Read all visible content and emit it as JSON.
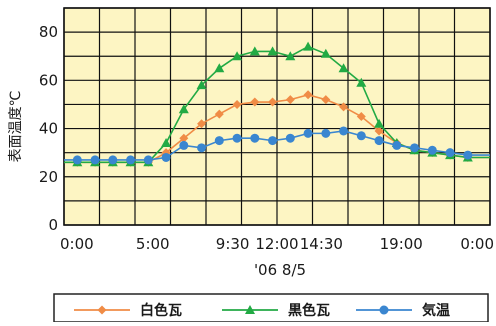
{
  "chart_data": {
    "type": "line",
    "title": "",
    "ylabel": "表面温度℃",
    "xlabel": "'06 8/5",
    "ylim": [
      0,
      90
    ],
    "yticks": [
      0,
      20,
      40,
      60,
      80
    ],
    "xticks": [
      "0:00",
      "5:00",
      "9:30",
      "12:00",
      "14:30",
      "19:00",
      "0:00"
    ],
    "x": [
      "1:00",
      "2:00",
      "3:00",
      "4:00",
      "5:00",
      "6:30",
      "7:00",
      "8:00",
      "9:00",
      "10:00",
      "11:00",
      "12:00",
      "13:00",
      "14:00",
      "15:00",
      "16:00",
      "17:00",
      "18:00",
      "19:00",
      "20:00",
      "21:00",
      "22:00",
      "23:00",
      "0:00"
    ],
    "grid": true,
    "legend_position": "bottom",
    "colors": {
      "plot_bg": "#fdf5c3",
      "grid": "#111111"
    },
    "series": [
      {
        "name": "白色瓦",
        "color": "#f08c46",
        "marker": "diamond",
        "values": [
          26,
          26,
          26,
          26,
          26,
          30,
          36,
          42,
          46,
          50,
          51,
          51,
          52,
          54,
          52,
          49,
          45,
          39,
          34,
          31,
          30,
          29,
          28,
          28
        ]
      },
      {
        "name": "黒色瓦",
        "color": "#22aa44",
        "marker": "triangle",
        "values": [
          26,
          26,
          26,
          26,
          26,
          34,
          48,
          58,
          65,
          70,
          72,
          72,
          70,
          74,
          71,
          65,
          59,
          42,
          34,
          31,
          30,
          29,
          28,
          28
        ]
      },
      {
        "name": "気温",
        "color": "#3a86d0",
        "marker": "circle",
        "values": [
          27,
          27,
          27,
          27,
          27,
          28,
          33,
          32,
          35,
          36,
          36,
          35,
          36,
          38,
          38,
          39,
          37,
          35,
          33,
          32,
          31,
          30,
          29,
          29
        ]
      }
    ]
  }
}
